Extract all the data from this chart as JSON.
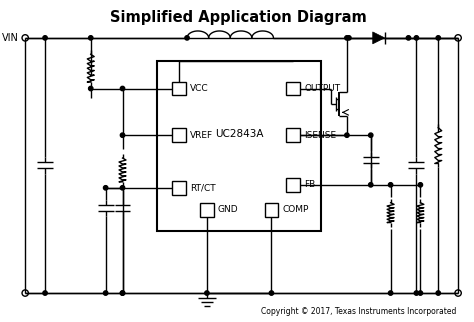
{
  "title": "Simplified Application Diagram",
  "copyright": "Copyright © 2017, Texas Instruments Incorporated",
  "ic_label": "UC2843A",
  "background_color": "#ffffff",
  "line_color": "#000000",
  "title_fontsize": 10.5,
  "copyright_fontsize": 5.5,
  "pin_fontsize": 6.5,
  "ic_fontsize": 7.5,
  "vin_fontsize": 7
}
